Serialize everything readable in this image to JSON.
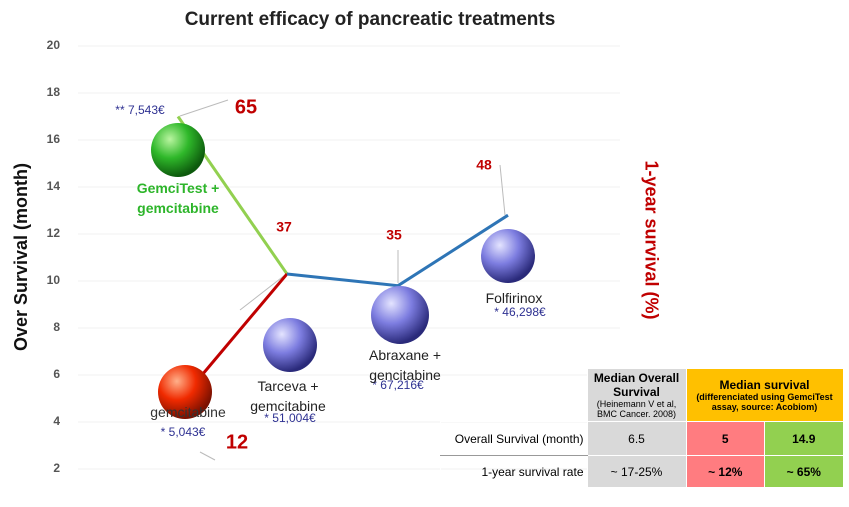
{
  "chart_data": {
    "type": "line",
    "title": "Current efficacy of pancreatic treatments",
    "y_label": "Over Survival (month)",
    "y2_label": "1-year survival (%)",
    "categories": [
      "GemciTest + gemcitabine",
      "gemcitabine",
      "Tarceva + gemcitabine",
      "Abraxane + gencitabine",
      "Folfirinox"
    ],
    "values": [
      17,
      5.9,
      10.3,
      9.8,
      12.8
    ],
    "survival_1yr": [
      65,
      12,
      37,
      35,
      48
    ],
    "costs": [
      "** 7,543€",
      "* 5,043€",
      "* 51,004€",
      "* 67,216€",
      "* 46,298€"
    ],
    "ylim": [
      2,
      20
    ],
    "yticks": [
      2,
      4,
      6,
      8,
      10,
      12,
      14,
      16,
      18,
      20
    ],
    "grid": true
  },
  "table": {
    "header": [
      {
        "title": "Median Overall Survival",
        "note": "(Heinemann V et al, BMC Cancer. 2008)"
      },
      {
        "title": "Median survival",
        "note": "(differenciated using GemciTest assay, source: Acobiom)"
      }
    ],
    "rows": [
      [
        "Overall Survival (month)",
        "6.5",
        "5",
        "14.9"
      ],
      [
        "1-year survival rate",
        "~ 17-25%",
        "~ 12%",
        "~ 65%"
      ]
    ]
  }
}
